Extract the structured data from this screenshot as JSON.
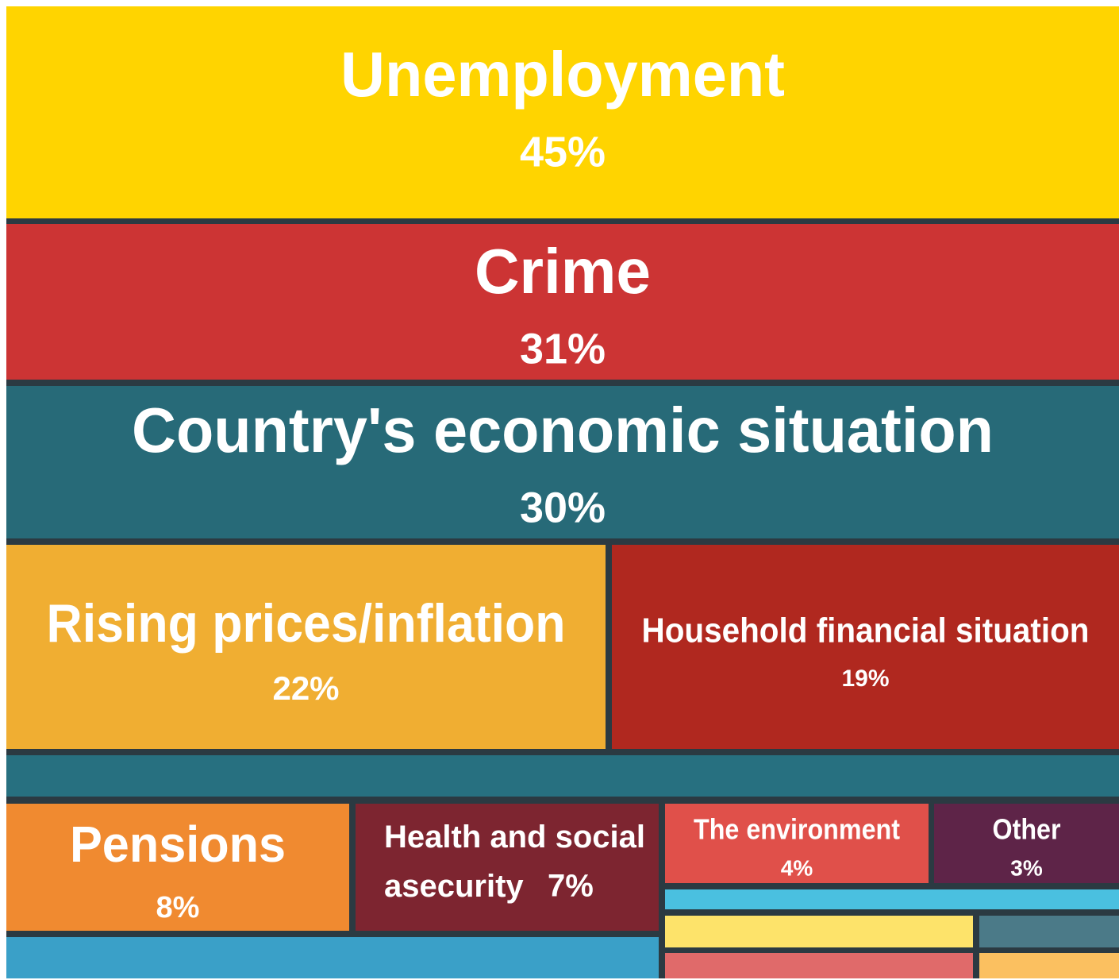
{
  "chart_data": {
    "type": "treemap",
    "categories": [
      "Unemployment",
      "Crime",
      "Country's economic situation",
      "Rising prices/inflation",
      "Household financial situation",
      "Pensions",
      "Health and social asecurity",
      "The environment",
      "Other"
    ],
    "values": [
      45,
      31,
      30,
      22,
      19,
      8,
      7,
      4,
      3
    ],
    "value_labels": [
      "45%",
      "31%",
      "30%",
      "22%",
      "19%",
      "8%",
      "7%",
      "4%",
      "3%"
    ],
    "colors": [
      "#ffd400",
      "#cc3434",
      "#276a78",
      "#f0ae32",
      "#b0281f",
      "#f08a30",
      "#7d2530",
      "#e0504a",
      "#5e2448"
    ]
  }
}
